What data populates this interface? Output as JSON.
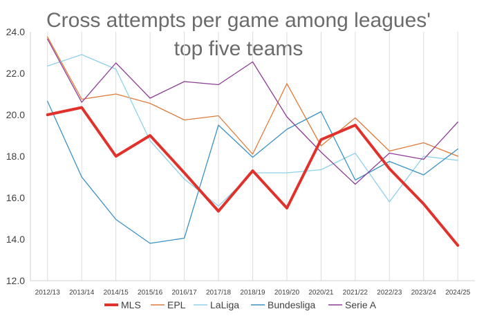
{
  "chart_data": {
    "type": "line",
    "title_lines": [
      "Cross attempts per game among leagues'",
      "top five teams"
    ],
    "xlabel": "",
    "ylabel": "",
    "categories": [
      "2012/13",
      "2013/14",
      "2014/15",
      "2015/16",
      "2016/17",
      "2017/18",
      "2018/19",
      "2019/20",
      "2020/21",
      "2021/22",
      "2022/23",
      "2023/24",
      "2024/25"
    ],
    "ylim": [
      12.0,
      24.0
    ],
    "yticks": [
      "12.0",
      "14.0",
      "16.0",
      "18.0",
      "20.0",
      "22.0",
      "24.0"
    ],
    "grid": "vertical",
    "legend_position": "bottom",
    "series": [
      {
        "name": "MLS",
        "color": "#e0312a",
        "values": [
          20.0,
          20.35,
          18.0,
          19.0,
          17.2,
          15.35,
          17.3,
          15.5,
          18.8,
          19.5,
          17.4,
          15.7,
          13.7
        ]
      },
      {
        "name": "EPL",
        "color": "#e07a38",
        "values": [
          23.75,
          20.75,
          21.0,
          20.55,
          19.75,
          19.95,
          18.1,
          21.5,
          18.5,
          19.85,
          18.25,
          18.65,
          18.0
        ]
      },
      {
        "name": "LaLiga",
        "color": "#8fd0ea",
        "values": [
          22.35,
          22.9,
          22.2,
          18.75,
          16.9,
          15.6,
          17.2,
          17.2,
          17.35,
          18.15,
          15.8,
          18.0,
          17.8
        ]
      },
      {
        "name": "Bundesliga",
        "color": "#3a91c5",
        "values": [
          20.65,
          17.0,
          14.95,
          13.8,
          14.05,
          19.5,
          17.95,
          19.3,
          20.15,
          16.85,
          17.75,
          17.1,
          18.35
        ]
      },
      {
        "name": "Serie A",
        "color": "#8e3c96",
        "values": [
          23.65,
          20.6,
          22.5,
          20.8,
          21.6,
          21.45,
          22.55,
          19.9,
          18.2,
          16.65,
          18.15,
          17.85,
          19.65
        ]
      }
    ]
  }
}
